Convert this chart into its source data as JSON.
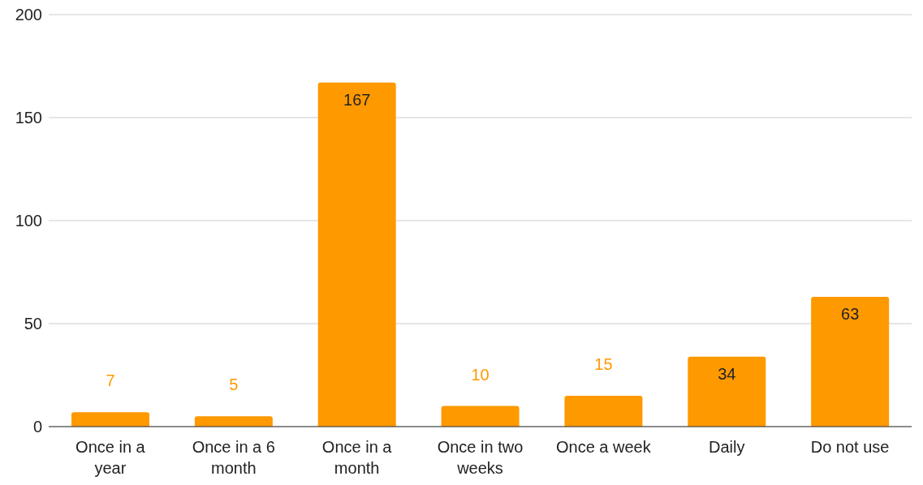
{
  "chart_data": {
    "type": "bar",
    "categories": [
      "Once in a year",
      "Once in a 6 month",
      "Once in a month",
      "Once in two weeks",
      "Once a week",
      "Daily",
      "Do not use"
    ],
    "values": [
      7,
      5,
      167,
      10,
      15,
      34,
      63
    ],
    "color": "#ff9900",
    "ylim": [
      0,
      200
    ],
    "yticks": [
      0,
      50,
      100,
      150,
      200
    ],
    "grid": "y",
    "data_labels": true
  }
}
